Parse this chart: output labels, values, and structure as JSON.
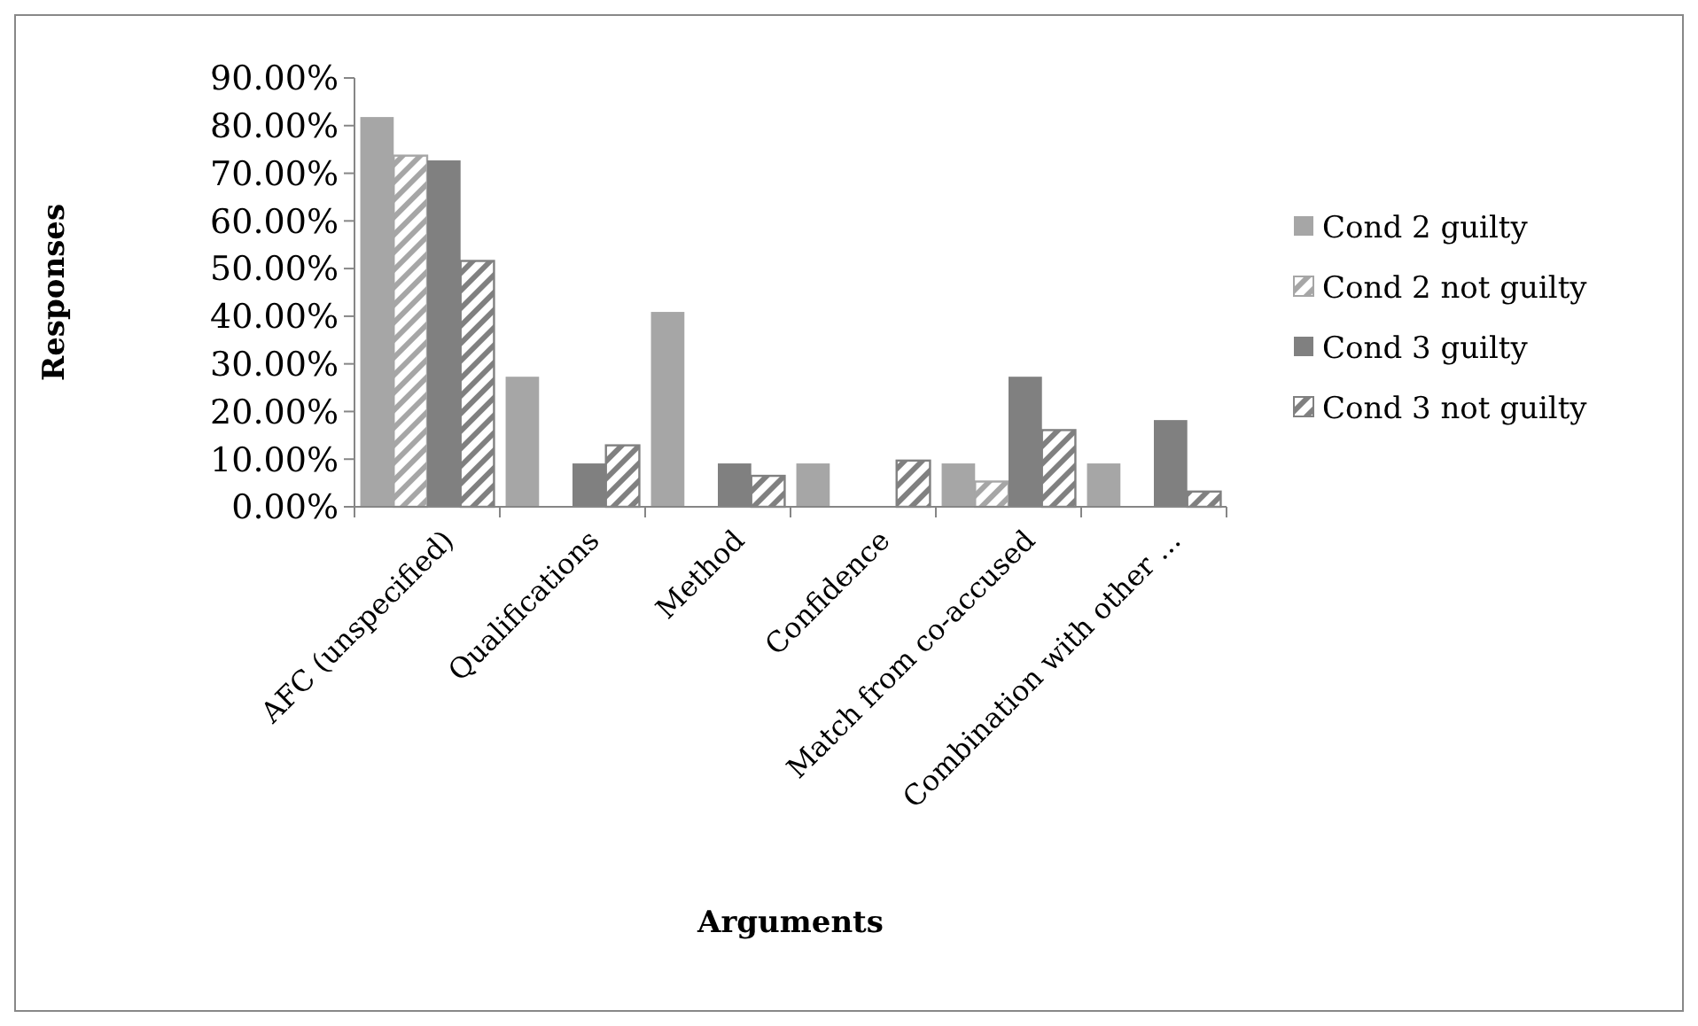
{
  "chart_data": {
    "type": "bar",
    "xlabel": "Arguments",
    "ylabel": "Responses",
    "categories": [
      "AFC (unspecified)",
      "Qualifications",
      "Method",
      "Confidence",
      "Match from co-accused",
      "Combination with other ..."
    ],
    "series": [
      {
        "name": "Cond 2 guilty",
        "color": "#a6a6a6",
        "values": [
          81.8,
          27.3,
          40.9,
          9.1,
          9.1,
          9.1
        ]
      },
      {
        "name": "Cond 2 not guilty",
        "color": "#a6a6a6",
        "values": [
          73.7,
          0,
          0,
          0,
          5.3,
          0
        ]
      },
      {
        "name": "Cond 3 guilty",
        "color": "#808080",
        "values": [
          72.7,
          9.1,
          9.1,
          0,
          27.3,
          18.2
        ]
      },
      {
        "name": "Cond 3 not guilty",
        "color": "#808080",
        "values": [
          51.6,
          12.9,
          6.5,
          9.7,
          16.1,
          3.2
        ]
      }
    ],
    "ylim": [
      0,
      90
    ],
    "yticks": [
      {
        "value": 0,
        "label": "0.00%"
      },
      {
        "value": 10,
        "label": "10.00%"
      },
      {
        "value": 20,
        "label": "20.00%"
      },
      {
        "value": 30,
        "label": "30.00%"
      },
      {
        "value": 40,
        "label": "40.00%"
      },
      {
        "value": 50,
        "label": "50.00%"
      },
      {
        "value": 60,
        "label": "60.00%"
      },
      {
        "value": 70,
        "label": "70.00%"
      },
      {
        "value": 80,
        "label": "80.00%"
      },
      {
        "value": 90,
        "label": "90.00%"
      }
    ],
    "grid": false,
    "legend": "right"
  }
}
